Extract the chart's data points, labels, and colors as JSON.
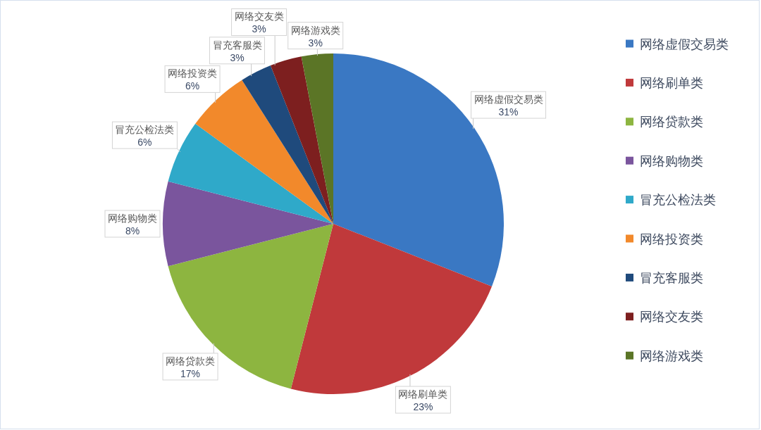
{
  "chart_data": {
    "type": "pie",
    "categories": [
      "网络虚假交易类",
      "网络刷单类",
      "网络贷款类",
      "网络购物类",
      "冒充公检法类",
      "网络投资类",
      "冒充客服类",
      "网络交友类",
      "网络游戏类"
    ],
    "values": [
      31,
      23,
      17,
      8,
      6,
      6,
      3,
      3,
      3
    ],
    "colors": [
      "#3a78c3",
      "#c0393b",
      "#8db540",
      "#7a559d",
      "#2fa9c9",
      "#f2892b",
      "#1f4a7c",
      "#7d1f1f",
      "#5b7526"
    ],
    "value_labels": [
      "31%",
      "23%",
      "17%",
      "8%",
      "6%",
      "6%",
      "3%",
      "3%",
      "3%"
    ],
    "legend": "right"
  }
}
